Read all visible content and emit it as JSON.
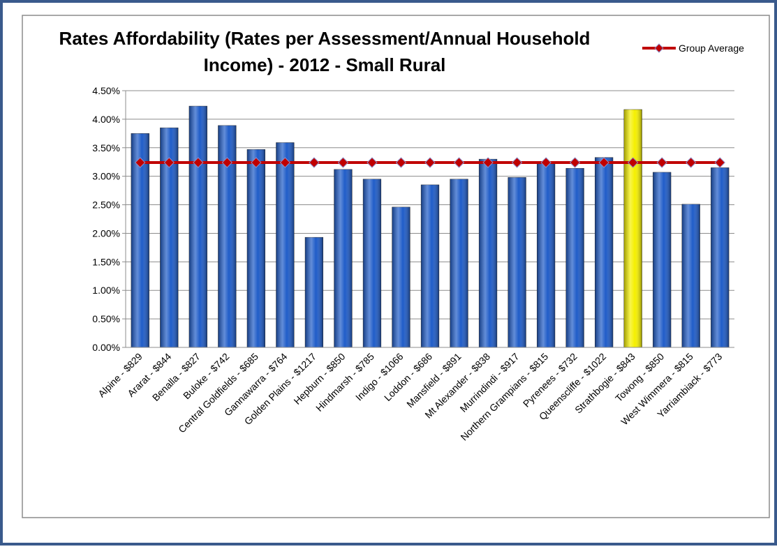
{
  "chart_data": {
    "type": "bar",
    "title": [
      "Rates Affordability (Rates per Assessment/Annual Household",
      "Income) - 2012 - Small Rural"
    ],
    "categories": [
      "Alpine - $829",
      "Ararat - $844",
      "Benalla - $827",
      "Buloke - $742",
      "Central Goldfields - $685",
      "Gannawarra - $764",
      "Golden Plains - $1217",
      "Hepburn - $850",
      "Hindmarsh - $785",
      "Indigo - $1066",
      "Loddon - $686",
      "Mansfield - $891",
      "Mt Alexander - $838",
      "Murrindindi - $917",
      "Northern Grampians - $815",
      "Pyrenees - $732",
      "Queenscliffe - $1022",
      "Strathbogie - $843",
      "Towong - $850",
      "West Wimmera - $815",
      "Yarriambiack - $773"
    ],
    "values": [
      3.75,
      3.85,
      4.23,
      3.89,
      3.47,
      3.59,
      1.93,
      3.12,
      2.95,
      2.46,
      2.85,
      2.95,
      3.3,
      2.98,
      3.25,
      3.14,
      3.33,
      4.17,
      3.07,
      2.51,
      3.15
    ],
    "colors": [
      "#1f5cc8",
      "#1f5cc8",
      "#1f5cc8",
      "#1f5cc8",
      "#1f5cc8",
      "#1f5cc8",
      "#1f5cc8",
      "#1f5cc8",
      "#1f5cc8",
      "#1f5cc8",
      "#1f5cc8",
      "#1f5cc8",
      "#1f5cc8",
      "#1f5cc8",
      "#1f5cc8",
      "#1f5cc8",
      "#1f5cc8",
      "#f5f000",
      "#1f5cc8",
      "#1f5cc8",
      "#1f5cc8"
    ],
    "series": [
      {
        "name": "Group Average",
        "type": "line",
        "color": "#c00000",
        "marker": "diamond",
        "values": [
          3.24,
          3.24,
          3.24,
          3.24,
          3.24,
          3.24,
          3.24,
          3.24,
          3.24,
          3.24,
          3.24,
          3.24,
          3.24,
          3.24,
          3.24,
          3.24,
          3.24,
          3.24,
          3.24,
          3.24,
          3.24
        ]
      }
    ],
    "ylim": [
      0,
      4.5
    ],
    "yticks": [
      {
        "value": 0,
        "label": "0.00%"
      },
      {
        "value": 0.5,
        "label": "0.50%"
      },
      {
        "value": 1,
        "label": "1.00%"
      },
      {
        "value": 1.5,
        "label": "1.50%"
      },
      {
        "value": 2,
        "label": "2.00%"
      },
      {
        "value": 2.5,
        "label": "2.50%"
      },
      {
        "value": 3,
        "label": "3.00%"
      },
      {
        "value": 3.5,
        "label": "3.50%"
      },
      {
        "value": 4,
        "label": "4.00%"
      },
      {
        "value": 4.5,
        "label": "4.50%"
      }
    ],
    "grid": true,
    "legend": "top-right"
  }
}
